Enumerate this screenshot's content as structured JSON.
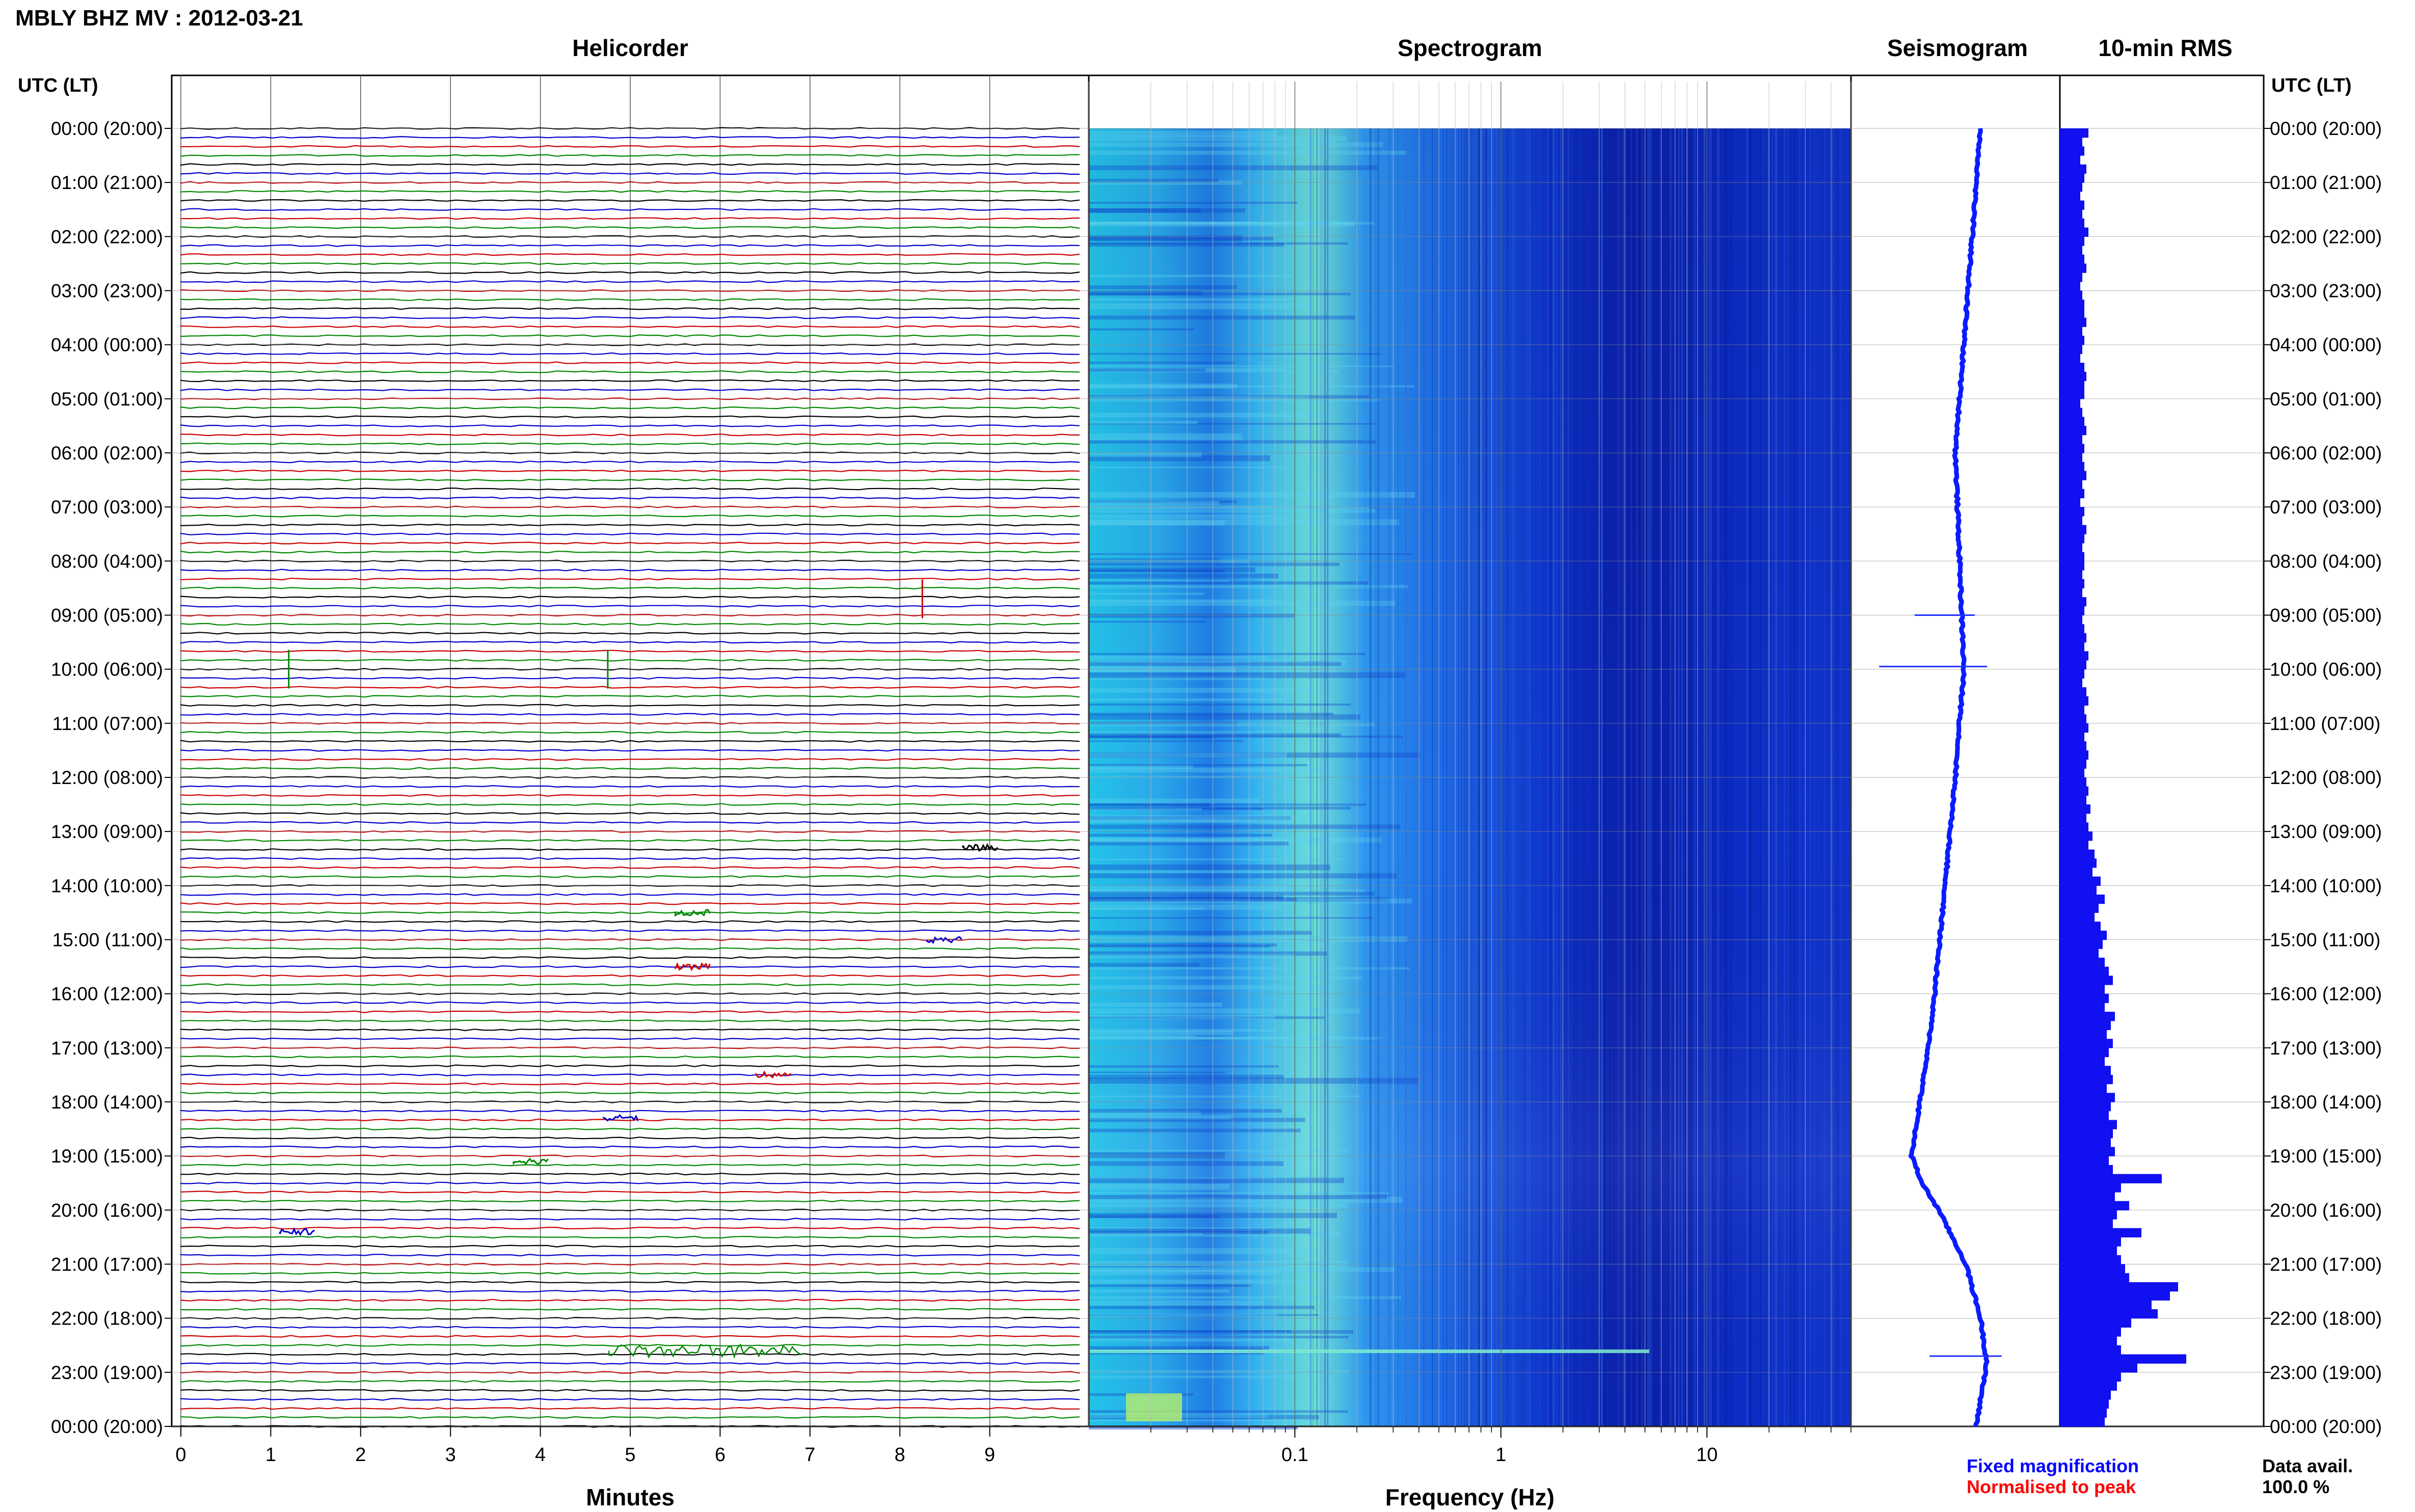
{
  "header": {
    "title": "MBLY BHZ MV : 2012-03-21",
    "utc_label_left": "UTC (LT)",
    "utc_label_right": "UTC (LT)"
  },
  "panels": {
    "helicorder_title": "Helicorder",
    "spectrogram_title": "Spectrogram",
    "seismogram_title": "Seismogram",
    "rms_title": "10-min RMS"
  },
  "time_labels": [
    "00:00 (20:00)",
    "01:00 (21:00)",
    "02:00 (22:00)",
    "03:00 (23:00)",
    "04:00 (00:00)",
    "05:00 (01:00)",
    "06:00 (02:00)",
    "07:00 (03:00)",
    "08:00 (04:00)",
    "09:00 (05:00)",
    "10:00 (06:00)",
    "11:00 (07:00)",
    "12:00 (08:00)",
    "13:00 (09:00)",
    "14:00 (10:00)",
    "15:00 (11:00)",
    "16:00 (12:00)",
    "17:00 (13:00)",
    "18:00 (14:00)",
    "19:00 (15:00)",
    "20:00 (16:00)",
    "21:00 (17:00)",
    "22:00 (18:00)",
    "23:00 (19:00)",
    "00:00 (20:00)"
  ],
  "helicorder": {
    "xlabel": "Minutes",
    "xticks": [
      "0",
      "1",
      "2",
      "3",
      "4",
      "5",
      "6",
      "7",
      "8",
      "9"
    ],
    "xlim": [
      0,
      10
    ],
    "trace_colors": [
      "#000000",
      "#0000cc",
      "#cc0000",
      "#008800"
    ]
  },
  "spectrogram": {
    "xlabel": "Frequency (Hz)",
    "xticks": [
      "0.1",
      "1",
      "10"
    ],
    "xlim": [
      0.01,
      50
    ],
    "scale": "log"
  },
  "legend": {
    "fixed": "Fixed magnification",
    "normalised": "Normalised to peak",
    "fixed_color": "#0000ff",
    "normalised_color": "#ff0000",
    "avail_label": "Data avail.",
    "avail_value": "100.0 %"
  },
  "chart_data": [
    {
      "type": "line",
      "name": "Helicorder",
      "xlabel": "Minutes",
      "xlim": [
        0,
        10
      ],
      "grid": true,
      "events": [
        {
          "hour": 8.7,
          "minute": 8.25,
          "color": "#cc0000"
        },
        {
          "hour": 10.0,
          "minute": 1.2,
          "color": "#008800"
        },
        {
          "hour": 10.0,
          "minute": 4.75,
          "color": "#008800"
        },
        {
          "hour": 13.3,
          "minute": 8.9,
          "color": "#000000"
        },
        {
          "hour": 14.5,
          "minute": 5.7,
          "color": "#008800"
        },
        {
          "hour": 15.0,
          "minute": 8.5,
          "color": "#0000cc"
        },
        {
          "hour": 15.5,
          "minute": 5.7,
          "color": "#cc0000"
        },
        {
          "hour": 17.5,
          "minute": 6.6,
          "color": "#cc0000"
        },
        {
          "hour": 18.3,
          "minute": 4.9,
          "color": "#0000cc"
        },
        {
          "hour": 19.1,
          "minute": 3.9,
          "color": "#008800"
        },
        {
          "hour": 20.4,
          "minute": 1.3,
          "color": "#0000cc"
        },
        {
          "hour": 22.6,
          "minute": 5.5,
          "color": "#008800"
        }
      ]
    },
    {
      "type": "heatmap",
      "name": "Spectrogram",
      "xlabel": "Frequency (Hz)",
      "xscale": "log",
      "xlim": [
        0.01,
        50
      ],
      "peak_frequency_hz": 0.25,
      "event_hour": 22.65
    },
    {
      "type": "line",
      "name": "Seismogram",
      "hours": [
        0,
        2,
        4,
        6,
        8,
        10,
        12,
        14,
        16,
        17,
        18,
        19,
        19.5,
        20,
        21,
        22,
        22.8,
        23.5,
        24
      ],
      "offset": [
        0.62,
        0.58,
        0.54,
        0.5,
        0.52,
        0.54,
        0.5,
        0.45,
        0.4,
        0.37,
        0.33,
        0.29,
        0.34,
        0.42,
        0.55,
        0.62,
        0.65,
        0.62,
        0.6
      ],
      "spikes": [
        {
          "hour": 9.0,
          "amplitude": 0.25
        },
        {
          "hour": 9.95,
          "amplitude": 0.45
        },
        {
          "hour": 22.7,
          "amplitude": 0.3
        }
      ]
    },
    {
      "type": "bar",
      "name": "10-min RMS",
      "orientation": "horizontal",
      "interval_minutes": 10,
      "values": [
        0.14,
        0.11,
        0.12,
        0.1,
        0.13,
        0.12,
        0.11,
        0.1,
        0.12,
        0.11,
        0.12,
        0.14,
        0.12,
        0.11,
        0.12,
        0.13,
        0.11,
        0.1,
        0.11,
        0.12,
        0.12,
        0.13,
        0.11,
        0.12,
        0.11,
        0.1,
        0.12,
        0.13,
        0.12,
        0.12,
        0.1,
        0.11,
        0.12,
        0.13,
        0.11,
        0.12,
        0.11,
        0.12,
        0.13,
        0.11,
        0.12,
        0.1,
        0.12,
        0.11,
        0.13,
        0.12,
        0.11,
        0.12,
        0.12,
        0.11,
        0.12,
        0.11,
        0.13,
        0.12,
        0.11,
        0.12,
        0.13,
        0.12,
        0.14,
        0.13,
        0.12,
        0.11,
        0.13,
        0.14,
        0.12,
        0.13,
        0.14,
        0.12,
        0.13,
        0.14,
        0.13,
        0.12,
        0.13,
        0.14,
        0.13,
        0.15,
        0.13,
        0.14,
        0.16,
        0.14,
        0.17,
        0.18,
        0.16,
        0.2,
        0.18,
        0.22,
        0.19,
        0.17,
        0.2,
        0.23,
        0.21,
        0.19,
        0.22,
        0.24,
        0.26,
        0.22,
        0.24,
        0.22,
        0.27,
        0.25,
        0.23,
        0.26,
        0.24,
        0.22,
        0.25,
        0.26,
        0.23,
        0.27,
        0.25,
        0.24,
        0.28,
        0.26,
        0.25,
        0.27,
        0.24,
        0.26,
        0.5,
        0.3,
        0.27,
        0.34,
        0.28,
        0.26,
        0.4,
        0.3,
        0.28,
        0.3,
        0.32,
        0.34,
        0.58,
        0.54,
        0.45,
        0.48,
        0.35,
        0.3,
        0.28,
        0.3,
        0.62,
        0.38,
        0.3,
        0.28,
        0.25,
        0.24,
        0.23,
        0.22
      ]
    }
  ]
}
